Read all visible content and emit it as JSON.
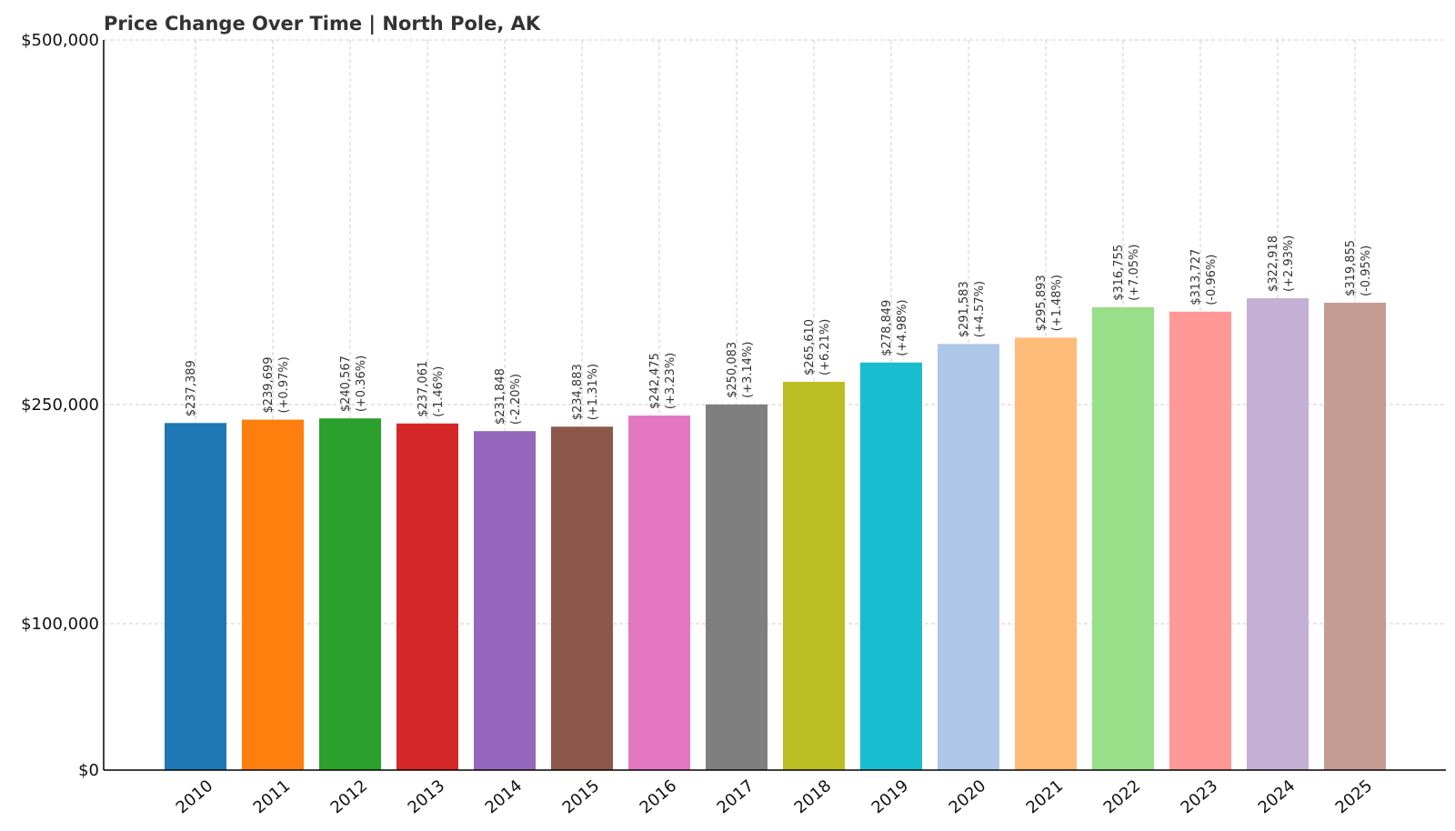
{
  "chart_data": {
    "type": "bar",
    "title": "Price Change Over Time | North Pole, AK",
    "xlabel": "",
    "ylabel": "",
    "ylim": [
      0,
      500000
    ],
    "yticks": [
      {
        "value": 0,
        "label": "$0"
      },
      {
        "value": 100000,
        "label": "$100,000"
      },
      {
        "value": 250000,
        "label": "$250,000"
      },
      {
        "value": 500000,
        "label": "$500,000"
      }
    ],
    "grid": true,
    "categories": [
      "2010",
      "2011",
      "2012",
      "2013",
      "2014",
      "2015",
      "2016",
      "2017",
      "2018",
      "2019",
      "2020",
      "2021",
      "2022",
      "2023",
      "2024",
      "2025"
    ],
    "values": [
      237389,
      239699,
      240567,
      237061,
      231848,
      234883,
      242475,
      250083,
      265610,
      278849,
      291583,
      295893,
      316755,
      313727,
      322918,
      319855
    ],
    "value_labels": [
      "$237,389",
      "$239,699",
      "$240,567",
      "$237,061",
      "$231,848",
      "$234,883",
      "$242,475",
      "$250,083",
      "$265,610",
      "$278,849",
      "$291,583",
      "$295,893",
      "$316,755",
      "$313,727",
      "$322,918",
      "$319,855"
    ],
    "change_labels": [
      "",
      "(+0.97%)",
      "(+0.36%)",
      "(-1.46%)",
      "(-2.20%)",
      "(+1.31%)",
      "(+3.23%)",
      "(+3.14%)",
      "(+6.21%)",
      "(+4.98%)",
      "(+4.57%)",
      "(+1.48%)",
      "(+7.05%)",
      "(-0.96%)",
      "(+2.93%)",
      "(-0.95%)"
    ],
    "colors": [
      "#1f77b4",
      "#ff7f0e",
      "#2ca02c",
      "#d62728",
      "#9467bd",
      "#8c564b",
      "#e377c2",
      "#7f7f7f",
      "#bcbd22",
      "#17becf",
      "#aec7e8",
      "#ffbb78",
      "#98df8a",
      "#ff9896",
      "#c5b0d5",
      "#c49c94"
    ]
  }
}
